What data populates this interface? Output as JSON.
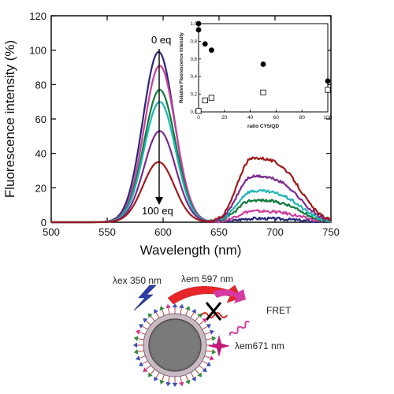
{
  "chart_data": {
    "type": "line",
    "xlabel": "Wavelength (nm)",
    "ylabel": "Fluorescence intensity (%)",
    "xlim": [
      500,
      750
    ],
    "ylim": [
      0,
      120
    ],
    "xticks": [
      "500",
      "550",
      "600",
      "650",
      "700",
      "750"
    ],
    "yticks": [
      "0",
      "20",
      "40",
      "60",
      "80",
      "100",
      "120"
    ],
    "annotations": {
      "top": "0 eq",
      "bottom": "100 eq"
    },
    "series": [
      {
        "color": "#27277a",
        "qd_peak": 99,
        "cy5_peak": 2,
        "qd_offset": -1
      },
      {
        "color": "#cc3d9e",
        "qd_peak": 91,
        "cy5_peak": 6,
        "qd_offset": 0
      },
      {
        "color": "#127a3c",
        "qd_peak": 77,
        "cy5_peak": 12,
        "qd_offset": 0
      },
      {
        "color": "#1fb5b5",
        "qd_peak": 70,
        "cy5_peak": 17,
        "qd_offset": 0
      },
      {
        "color": "#7c2a8e",
        "qd_peak": 53,
        "cy5_peak": 25,
        "qd_offset": 0
      },
      {
        "color": "#9e1a1a",
        "qd_peak": 35,
        "cy5_peak": 35,
        "qd_offset": -1
      }
    ],
    "inset": {
      "type": "scatter",
      "ylabel": "Relative Fluorescence intensity",
      "xlabel": "ratio CY5/QD",
      "xlim": [
        0,
        100
      ],
      "ylim": [
        0,
        1
      ],
      "xticks": [
        "0",
        "20",
        "40",
        "60",
        "80",
        "100"
      ],
      "yticks": [
        "0,0",
        "0,2",
        "0,4",
        "0,6",
        "0,8",
        "1,0"
      ],
      "filled": [
        [
          0,
          1.0
        ],
        [
          0,
          0.93
        ],
        [
          5,
          0.77
        ],
        [
          10,
          0.7
        ],
        [
          50,
          0.54
        ],
        [
          100,
          0.35
        ]
      ],
      "open": [
        [
          0,
          0.01
        ],
        [
          5,
          0.13
        ],
        [
          10,
          0.16
        ],
        [
          50,
          0.22
        ],
        [
          100,
          0.25
        ]
      ]
    }
  },
  "scheme": {
    "ex_label": "λex 350 nm",
    "em_label": "λem 597 nm",
    "fret_label": "FRET",
    "em2_label": "λem671 nm"
  }
}
